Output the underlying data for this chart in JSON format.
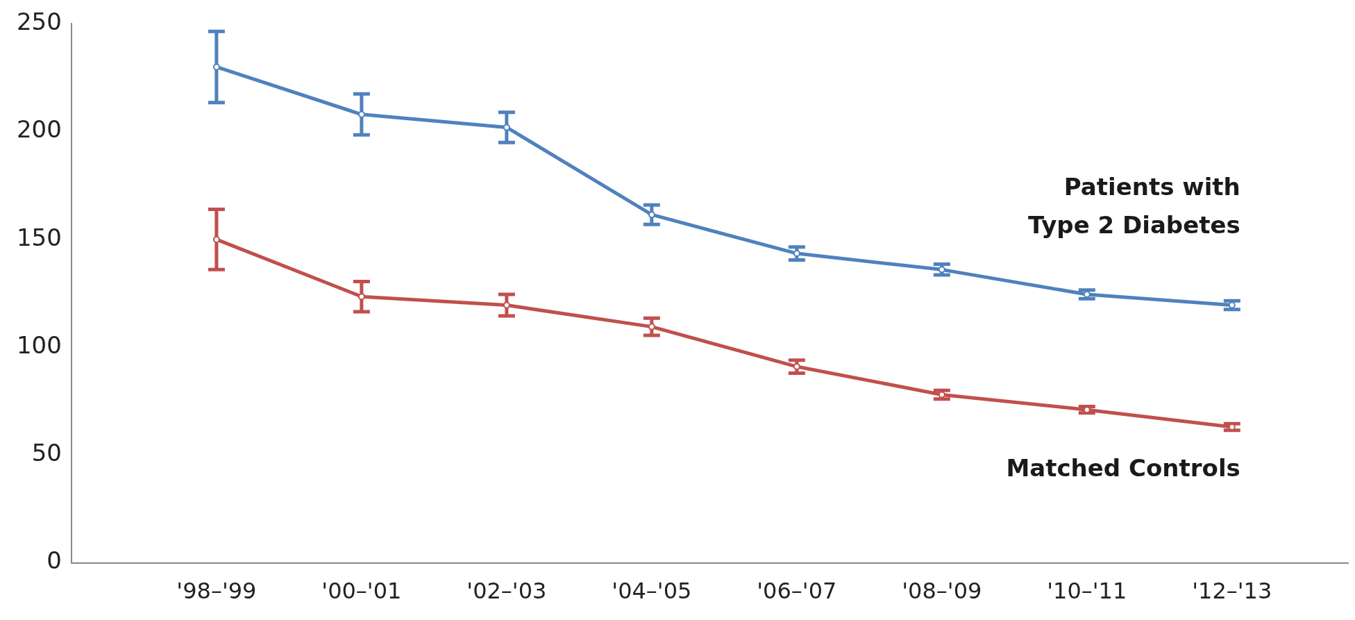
{
  "chart_data": {
    "type": "line",
    "categories": [
      "'98–'99",
      "'00–'01",
      "'02–'03",
      "'04–'05",
      "'06–'07",
      "'08–'09",
      "'10–'11",
      "'12–'13"
    ],
    "series": [
      {
        "name": "Patients with\nType 2 Diabetes",
        "color": "#4f81bd",
        "values": [
          230,
          208,
          202,
          161.5,
          143.5,
          136,
          124.5,
          119.5
        ],
        "errors": [
          16.5,
          9.5,
          7,
          4.5,
          3,
          2.5,
          2,
          2
        ]
      },
      {
        "name": "Matched Controls",
        "color": "#c0504d",
        "values": [
          150,
          123.5,
          119.5,
          109.5,
          91,
          78,
          71,
          63
        ],
        "errors": [
          14,
          7,
          5,
          4,
          3,
          2,
          1.5,
          1.5
        ]
      }
    ],
    "ylim": [
      0,
      250
    ],
    "yticks": [
      0,
      50,
      100,
      150,
      200,
      250
    ],
    "grid": false,
    "legend": false,
    "marker": "circle",
    "line_style": "solid"
  }
}
